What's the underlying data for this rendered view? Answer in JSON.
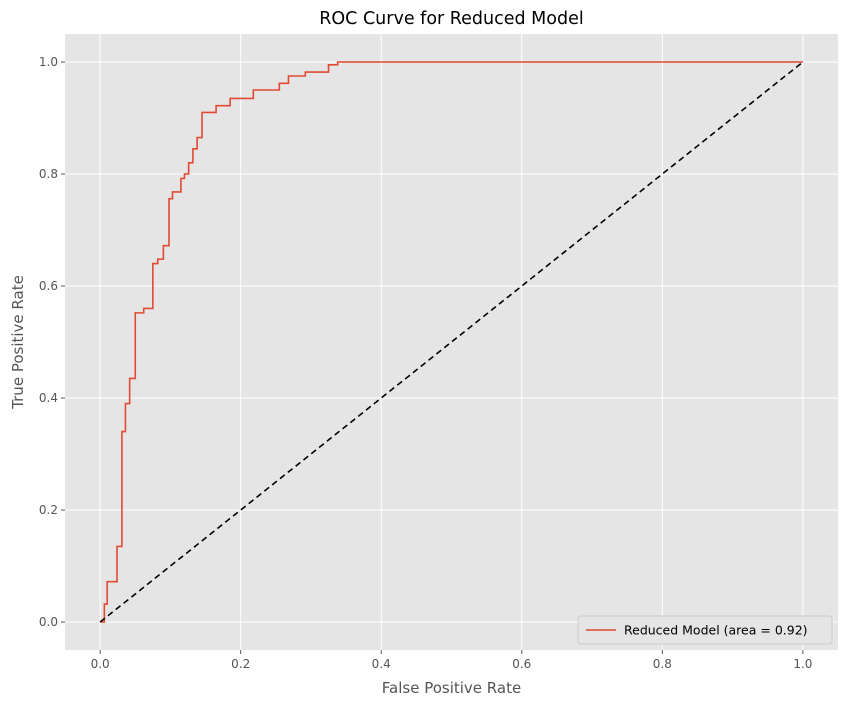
{
  "chart_data": {
    "type": "line",
    "title": "ROC Curve for Reduced Model",
    "xlabel": "False Positive Rate",
    "ylabel": "True Positive Rate",
    "xlim": [
      -0.05,
      1.05
    ],
    "ylim": [
      -0.05,
      1.05
    ],
    "xticks": [
      0.0,
      0.2,
      0.4,
      0.6,
      0.8,
      1.0
    ],
    "yticks": [
      0.0,
      0.2,
      0.4,
      0.6,
      0.8,
      1.0
    ],
    "xtick_labels": [
      "0.0",
      "0.2",
      "0.4",
      "0.6",
      "0.8",
      "1.0"
    ],
    "ytick_labels": [
      "0.0",
      "0.2",
      "0.4",
      "0.6",
      "0.8",
      "1.0"
    ],
    "grid": true,
    "legend_position": "bottom-right",
    "series": [
      {
        "name": "Reduced Model (area = 0.92)",
        "color": "#E24A33",
        "style": "solid",
        "x": [
          0.0,
          0.006,
          0.006,
          0.01,
          0.01,
          0.024,
          0.024,
          0.031,
          0.031,
          0.036,
          0.036,
          0.042,
          0.042,
          0.05,
          0.05,
          0.062,
          0.062,
          0.075,
          0.075,
          0.082,
          0.082,
          0.09,
          0.09,
          0.098,
          0.098,
          0.103,
          0.103,
          0.115,
          0.115,
          0.12,
          0.12,
          0.126,
          0.126,
          0.132,
          0.132,
          0.138,
          0.138,
          0.145,
          0.145,
          0.165,
          0.165,
          0.185,
          0.185,
          0.218,
          0.218,
          0.255,
          0.255,
          0.268,
          0.268,
          0.292,
          0.292,
          0.325,
          0.325,
          0.338,
          0.338,
          1.0
        ],
        "y": [
          0.0,
          0.0,
          0.032,
          0.032,
          0.072,
          0.072,
          0.135,
          0.135,
          0.34,
          0.34,
          0.39,
          0.39,
          0.435,
          0.435,
          0.552,
          0.552,
          0.56,
          0.56,
          0.64,
          0.64,
          0.648,
          0.648,
          0.672,
          0.672,
          0.756,
          0.756,
          0.768,
          0.768,
          0.792,
          0.792,
          0.8,
          0.8,
          0.82,
          0.82,
          0.845,
          0.845,
          0.865,
          0.865,
          0.91,
          0.91,
          0.922,
          0.922,
          0.935,
          0.935,
          0.95,
          0.95,
          0.962,
          0.962,
          0.975,
          0.975,
          0.982,
          0.982,
          0.995,
          0.995,
          1.0,
          1.0
        ]
      },
      {
        "name": "",
        "color": "#000000",
        "style": "dashed",
        "x": [
          0.0,
          1.0
        ],
        "y": [
          0.0,
          1.0
        ]
      }
    ]
  }
}
